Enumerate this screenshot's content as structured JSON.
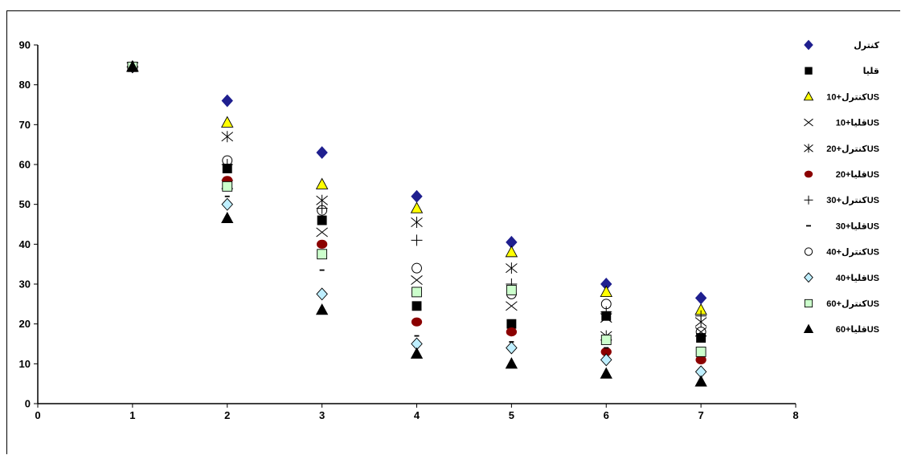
{
  "chart_data": {
    "type": "scatter",
    "title": "",
    "xlabel": "",
    "ylabel": "",
    "xlim": [
      0,
      8
    ],
    "ylim": [
      0,
      90
    ],
    "xticks": [
      "0",
      "1",
      "2",
      "3",
      "4",
      "5",
      "6",
      "7",
      "8"
    ],
    "yticks": [
      "0",
      "10",
      "20",
      "30",
      "40",
      "50",
      "60",
      "70",
      "80",
      "90"
    ],
    "grid": false,
    "legend_position": "right",
    "x": [
      1,
      2,
      3,
      4,
      5,
      6,
      7
    ],
    "series": [
      {
        "name": "كنترل",
        "marker": "diamond-filled",
        "color": "#1F1F8F",
        "values": [
          84.5,
          76,
          63,
          52,
          40.5,
          30,
          26.5
        ]
      },
      {
        "name": "قليا",
        "marker": "square-filled",
        "color": "#000000",
        "values": [
          84.5,
          59,
          46,
          24.5,
          20,
          22,
          16.5
        ]
      },
      {
        "name": "كنترل+10US",
        "marker": "triangle-open",
        "color": "#FFFF00",
        "values": [
          84.5,
          70.5,
          55,
          49,
          38,
          28,
          23.5
        ]
      },
      {
        "name": "قليا+10US",
        "marker": "x",
        "color": "#000000",
        "values": [
          84.5,
          55,
          43,
          31,
          24.5,
          21.5,
          18
        ]
      },
      {
        "name": "كنترل+20US",
        "marker": "asterisk",
        "color": "#000000",
        "values": [
          84.5,
          67,
          51,
          45.5,
          34,
          17,
          20.5
        ]
      },
      {
        "name": "قليا+20US",
        "marker": "circle-filled",
        "color": "#8B0000",
        "values": [
          84.5,
          56,
          40,
          20.5,
          18,
          13,
          11
        ]
      },
      {
        "name": "كنترل+30US",
        "marker": "plus",
        "color": "#000000",
        "values": [
          84.5,
          60,
          49,
          41,
          30,
          23,
          22
        ]
      },
      {
        "name": "قليا+30US",
        "marker": "dash",
        "color": "#000000",
        "values": [
          84.5,
          52,
          33.5,
          17,
          15.5,
          14,
          13
        ]
      },
      {
        "name": "كنترل+40US",
        "marker": "circle-open",
        "color": "#000000",
        "values": [
          84.5,
          61,
          48.5,
          34,
          27.5,
          25,
          18
        ]
      },
      {
        "name": "قليا+40US",
        "marker": "diamond-open",
        "color": "#BFEFFF",
        "values": [
          84.5,
          50,
          27.5,
          15,
          14,
          11,
          8
        ]
      },
      {
        "name": "كنترل+60US",
        "marker": "square-open",
        "color": "#CCFFCC",
        "values": [
          84.5,
          54.5,
          37.5,
          28,
          28.5,
          16,
          13
        ]
      },
      {
        "name": "قليا+60US",
        "marker": "triangle-filled",
        "color": "#000000",
        "values": [
          84.5,
          46.5,
          23.5,
          12.5,
          10,
          7.5,
          5.5
        ]
      }
    ]
  }
}
